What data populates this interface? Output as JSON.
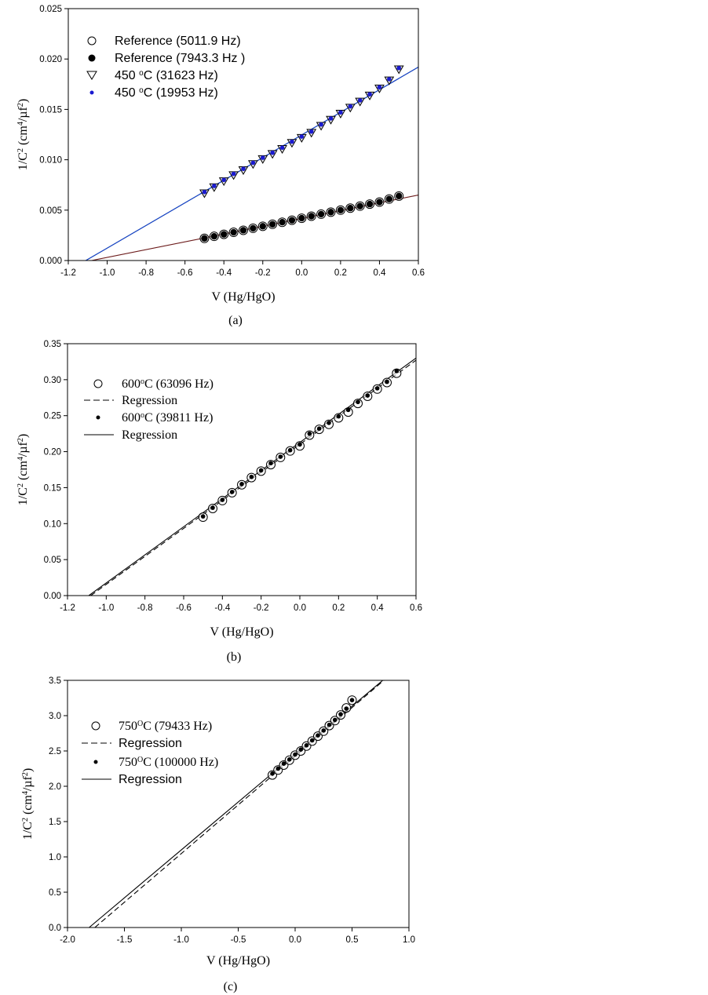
{
  "chart_data": [
    {
      "type": "scatter",
      "panel_caption": "(a)",
      "xlabel": "V (Hg/HgO)",
      "ylabel_parts": [
        [
          "1/C",
          ""
        ],
        [
          "",
          "2"
        ],
        [
          " (cm",
          ""
        ],
        [
          "",
          "4"
        ],
        [
          "/µf",
          ""
        ],
        [
          "",
          "2"
        ],
        [
          ")",
          ""
        ]
      ],
      "xlim": [
        -1.2,
        0.6
      ],
      "ylim": [
        0,
        0.025
      ],
      "xticks": [
        -1.2,
        -1.0,
        -0.8,
        -0.6,
        -0.4,
        -0.2,
        0.0,
        0.2,
        0.4,
        0.6
      ],
      "xtick_labels": [
        "-1.2",
        "-1.0",
        "-0.8",
        "-0.6",
        "-0.4",
        "-0.2",
        "0.0",
        "0.2",
        "0.4",
        "0.6"
      ],
      "yticks": [
        0,
        0.005,
        0.01,
        0.015,
        0.02,
        0.025
      ],
      "ytick_labels": [
        "0.000",
        "0.005",
        "0.010",
        "0.015",
        "0.020",
        "0.025"
      ],
      "legend_position": "top-left",
      "legend_font": "sans",
      "x": [
        -0.5,
        -0.45,
        -0.4,
        -0.35,
        -0.3,
        -0.25,
        -0.2,
        -0.15,
        -0.1,
        -0.05,
        0,
        0.05,
        0.1,
        0.15,
        0.2,
        0.25,
        0.3,
        0.35,
        0.4,
        0.45,
        0.5
      ],
      "series": [
        {
          "name_parts": [
            [
              "Reference (5011.9 Hz)",
              ""
            ]
          ],
          "marker": "open-circle",
          "color": "#000000",
          "values": [
            0.0022,
            0.0024,
            0.0026,
            0.0028,
            0.003,
            0.0032,
            0.0034,
            0.0036,
            0.0038,
            0.004,
            0.0042,
            0.0044,
            0.0046,
            0.0048,
            0.005,
            0.0052,
            0.0054,
            0.0056,
            0.0058,
            0.0061,
            0.0064
          ]
        },
        {
          "name_parts": [
            [
              "Reference (7943.3 Hz )",
              ""
            ]
          ],
          "marker": "filled-circle",
          "color": "#000000",
          "values": [
            0.0022,
            0.0024,
            0.0026,
            0.0028,
            0.003,
            0.0032,
            0.0034,
            0.0036,
            0.0038,
            0.004,
            0.0042,
            0.0044,
            0.0046,
            0.0048,
            0.005,
            0.0052,
            0.0054,
            0.0056,
            0.0058,
            0.0061,
            0.0064
          ]
        },
        {
          "name_parts": [
            [
              "450 ",
              ""
            ],
            [
              "",
              "o"
            ],
            [
              "C (31623 Hz)",
              ""
            ]
          ],
          "marker": "open-triangle-down",
          "color": "#000000",
          "values": [
            0.0067,
            0.0073,
            0.0079,
            0.0085,
            0.009,
            0.0096,
            0.0101,
            0.0106,
            0.0111,
            0.0117,
            0.0122,
            0.0127,
            0.0134,
            0.014,
            0.0146,
            0.0152,
            0.0158,
            0.0164,
            0.0171,
            0.0179,
            0.019
          ]
        },
        {
          "name_parts": [
            [
              "450 ",
              ""
            ],
            [
              "",
              "o"
            ],
            [
              "C (19953 Hz)",
              ""
            ]
          ],
          "marker": "small-dot",
          "color": "#1a1ad0",
          "values": [
            0.0068,
            0.0074,
            0.008,
            0.0086,
            0.0091,
            0.0097,
            0.0102,
            0.0107,
            0.0112,
            0.0118,
            0.0123,
            0.0128,
            0.0135,
            0.0141,
            0.0147,
            0.0153,
            0.0159,
            0.0165,
            0.0172,
            0.018,
            0.0191
          ]
        }
      ],
      "fit_lines": [
        {
          "from": [
            -1.08,
            0
          ],
          "to": [
            0.6,
            0.0065
          ],
          "color": "#6b1a1a",
          "dash": "solid"
        },
        {
          "from": [
            -1.11,
            0
          ],
          "to": [
            0.6,
            0.0192
          ],
          "color": "#1fa01f",
          "dash": "solid"
        },
        {
          "from": [
            -1.11,
            0
          ],
          "to": [
            0.6,
            0.0192
          ],
          "color": "#1a3ad8",
          "dash": "solid"
        }
      ]
    },
    {
      "type": "scatter",
      "panel_caption": "(b)",
      "xlabel": "V (Hg/HgO)",
      "ylabel_parts": [
        [
          "1/C",
          ""
        ],
        [
          "",
          "2"
        ],
        [
          " (cm",
          ""
        ],
        [
          "",
          "4"
        ],
        [
          "/µf",
          ""
        ],
        [
          "",
          "2"
        ],
        [
          ")",
          ""
        ]
      ],
      "xlim": [
        -1.2,
        0.6
      ],
      "ylim": [
        0,
        0.35
      ],
      "xticks": [
        -1.2,
        -1.0,
        -0.8,
        -0.6,
        -0.4,
        -0.2,
        0.0,
        0.2,
        0.4,
        0.6
      ],
      "xtick_labels": [
        "-1.2",
        "-1.0",
        "-0.8",
        "-0.6",
        "-0.4",
        "-0.2",
        "0.0",
        "0.2",
        "0.4",
        "0.6"
      ],
      "yticks": [
        0,
        0.05,
        0.1,
        0.15,
        0.2,
        0.25,
        0.3,
        0.35
      ],
      "ytick_labels": [
        "0.00",
        "0.05",
        "0.10",
        "0.15",
        "0.20",
        "0.25",
        "0.30",
        "0.35"
      ],
      "legend_position": "top-left",
      "legend_font": "serif",
      "x": [
        -0.5,
        -0.45,
        -0.4,
        -0.35,
        -0.3,
        -0.25,
        -0.2,
        -0.15,
        -0.1,
        -0.05,
        0,
        0.05,
        0.1,
        0.15,
        0.2,
        0.25,
        0.3,
        0.35,
        0.4,
        0.45,
        0.5
      ],
      "series": [
        {
          "name_parts": [
            [
              "600",
              ""
            ],
            [
              "",
              "o"
            ],
            [
              "C  (63096 Hz)",
              ""
            ]
          ],
          "marker": "open-circle",
          "color": "#000000",
          "values": [
            0.109,
            0.121,
            0.132,
            0.143,
            0.154,
            0.164,
            0.173,
            0.182,
            0.192,
            0.201,
            0.208,
            0.223,
            0.231,
            0.238,
            0.247,
            0.255,
            0.267,
            0.277,
            0.287,
            0.296,
            0.309
          ]
        },
        {
          "name_parts": [
            [
              "Regression",
              ""
            ]
          ],
          "marker": "dashed-line",
          "color": "#000000",
          "values": []
        },
        {
          "name_parts": [
            [
              "600",
              ""
            ],
            [
              "",
              "o"
            ],
            [
              "C (39811 Hz)",
              ""
            ]
          ],
          "marker": "small-dot",
          "color": "#000000",
          "values": [
            0.11,
            0.122,
            0.133,
            0.144,
            0.155,
            0.165,
            0.174,
            0.184,
            0.193,
            0.202,
            0.21,
            0.225,
            0.232,
            0.24,
            0.249,
            0.258,
            0.269,
            0.278,
            0.288,
            0.297,
            0.312
          ]
        },
        {
          "name_parts": [
            [
              "Regression",
              ""
            ]
          ],
          "marker": "solid-line",
          "color": "#000000",
          "values": []
        }
      ],
      "fit_lines": [
        {
          "from": [
            -1.08,
            0
          ],
          "to": [
            0.6,
            0.327
          ],
          "color": "#000000",
          "dash": "dashed"
        },
        {
          "from": [
            -1.09,
            0
          ],
          "to": [
            0.6,
            0.33
          ],
          "color": "#000000",
          "dash": "solid"
        }
      ]
    },
    {
      "type": "scatter",
      "panel_caption": "(c)",
      "xlabel": "V (Hg/HgO)",
      "ylabel_parts": [
        [
          "1/C",
          ""
        ],
        [
          "",
          "2"
        ],
        [
          " (cm",
          ""
        ],
        [
          "",
          "4"
        ],
        [
          "/µf",
          ""
        ],
        [
          "",
          "2"
        ],
        [
          ")",
          ""
        ]
      ],
      "xlim": [
        -2.0,
        1.0
      ],
      "ylim": [
        0,
        3.5
      ],
      "xticks": [
        -2.0,
        -1.5,
        -1.0,
        -0.5,
        0.0,
        0.5,
        1.0
      ],
      "xtick_labels": [
        "-2.0",
        "-1.5",
        "-1.0",
        "-0.5",
        "0.0",
        "0.5",
        "1.0"
      ],
      "yticks": [
        0,
        0.5,
        1,
        1.5,
        2,
        2.5,
        3,
        3.5
      ],
      "ytick_labels": [
        "0.0",
        "0.5",
        "1.0",
        "1.5",
        "2.0",
        "2.5",
        "3.0",
        "3.5"
      ],
      "legend_position": "top-left",
      "legend_font": "mixed",
      "x": [
        -0.2,
        -0.15,
        -0.1,
        -0.05,
        0,
        0.05,
        0.1,
        0.15,
        0.2,
        0.25,
        0.3,
        0.35,
        0.4,
        0.45,
        0.5
      ],
      "series": [
        {
          "name_parts": [
            [
              "750",
              ""
            ],
            [
              "",
              "O"
            ],
            [
              "C (79433 Hz)",
              ""
            ]
          ],
          "marker": "open-circle",
          "color": "#000000",
          "values": [
            2.16,
            2.23,
            2.3,
            2.37,
            2.44,
            2.5,
            2.57,
            2.64,
            2.71,
            2.78,
            2.86,
            2.93,
            3.01,
            3.11,
            3.22
          ]
        },
        {
          "name_parts": [
            [
              "Regression",
              ""
            ]
          ],
          "marker": "dashed-line",
          "color": "#000000",
          "values": []
        },
        {
          "name_parts": [
            [
              "750",
              ""
            ],
            [
              "",
              "O"
            ],
            [
              "C (100000 Hz)",
              ""
            ]
          ],
          "marker": "small-dot",
          "color": "#000000",
          "values": [
            2.18,
            2.25,
            2.32,
            2.38,
            2.45,
            2.52,
            2.58,
            2.65,
            2.72,
            2.79,
            2.87,
            2.94,
            3.02,
            3.1,
            3.22
          ]
        },
        {
          "name_parts": [
            [
              "Regression",
              ""
            ]
          ],
          "marker": "solid-line",
          "color": "#000000",
          "values": []
        }
      ],
      "fit_lines": [
        {
          "from": [
            -1.76,
            0
          ],
          "to": [
            0.78,
            3.5
          ],
          "color": "#000000",
          "dash": "dashed"
        },
        {
          "from": [
            -1.81,
            0
          ],
          "to": [
            0.77,
            3.5
          ],
          "color": "#000000",
          "dash": "solid"
        }
      ]
    }
  ]
}
